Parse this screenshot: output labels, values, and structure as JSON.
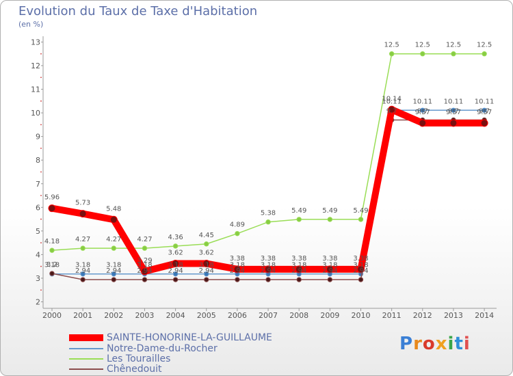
{
  "title": "Evolution du Taux de Taxe d'Habitation",
  "unit_label": "(en %)",
  "brand": "Proxiti",
  "chart_data": {
    "type": "line",
    "title": "Evolution du Taux de Taxe d'Habitation",
    "ylabel": "(en %)",
    "xlabel": "",
    "x": [
      "2000",
      "2001",
      "2002",
      "2003",
      "2004",
      "2005",
      "2006",
      "2007",
      "2008",
      "2009",
      "2010",
      "2011",
      "2012",
      "2013",
      "2014"
    ],
    "y_ticks": [
      "2",
      "3",
      "4",
      "5",
      "6",
      "7",
      "8",
      "9",
      "10",
      "11",
      "12",
      "13"
    ],
    "ylim": [
      2,
      13
    ],
    "grid": false,
    "series": [
      {
        "name": "SAINTE-HONORINE-LA-GUILLAUME",
        "color": "#ff0000",
        "values": [
          5.96,
          5.73,
          5.48,
          3.29,
          3.62,
          3.62,
          3.38,
          3.38,
          3.38,
          3.38,
          3.38,
          10.14,
          9.57,
          9.57,
          9.57
        ],
        "labels": [
          "5.96",
          "5.73",
          "5.48",
          "3.29",
          "3.62",
          "3.62",
          "3.38",
          "3.38",
          "3.38",
          "3.38",
          "3.38",
          "10.14",
          "9.57",
          "9.57",
          "9.57"
        ]
      },
      {
        "name": "Notre-Dame-du-Rocher",
        "color": "#6699cc",
        "values": [
          3.18,
          3.18,
          3.18,
          3.18,
          3.18,
          3.18,
          3.18,
          3.18,
          3.18,
          3.18,
          3.18,
          10.11,
          10.11,
          10.11,
          10.11
        ],
        "labels": [
          "3.18",
          "3.18",
          "3.18",
          "3.18",
          "3.18",
          "3.18",
          "3.18",
          "3.18",
          "3.18",
          "3.18",
          "3.18",
          "10.11",
          "10.11",
          "10.11",
          "10.11"
        ]
      },
      {
        "name": "Les Tourailles",
        "color": "#99dd55",
        "values": [
          4.18,
          4.27,
          4.27,
          4.27,
          4.36,
          4.45,
          4.89,
          5.38,
          5.49,
          5.49,
          5.49,
          12.5,
          12.5,
          12.5,
          12.5
        ],
        "labels": [
          "4.18",
          "4.27",
          "4.27",
          "4.27",
          "4.36",
          "4.45",
          "4.89",
          "5.38",
          "5.49",
          "5.49",
          "5.49",
          "12.5",
          "12.5",
          "12.5",
          "12.5"
        ]
      },
      {
        "name": "Chênedouit",
        "color": "#8b4c4c",
        "values": [
          3.2,
          2.94,
          2.94,
          2.94,
          2.94,
          2.94,
          2.94,
          2.94,
          2.94,
          2.94,
          2.94,
          9.7,
          9.7,
          9.7,
          9.7
        ],
        "labels": [
          "3.2",
          "2.94",
          "2.94",
          "2.94",
          "2.94",
          "2.94",
          "2.94",
          "2.94",
          "2.94",
          "2.94",
          "2.94",
          "9.7",
          "9.7",
          "9.7",
          "9.7"
        ]
      }
    ]
  }
}
